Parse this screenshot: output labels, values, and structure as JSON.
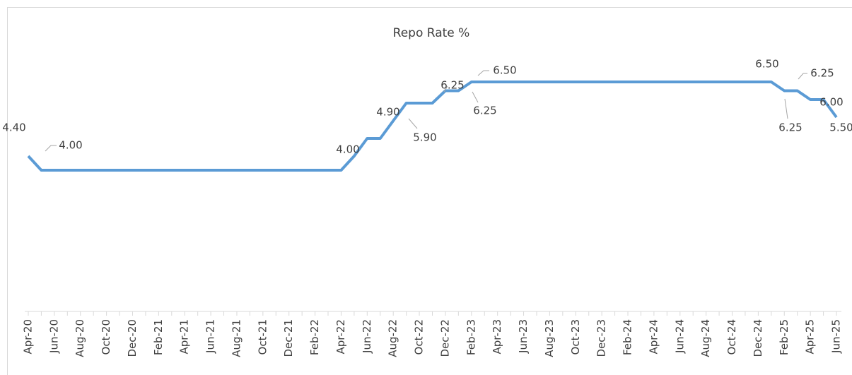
{
  "chart_data": {
    "type": "line",
    "title": "Repo Rate %",
    "categories": [
      "Apr-20",
      null,
      "Jun-20",
      null,
      "Aug-20",
      null,
      "Oct-20",
      null,
      "Dec-20",
      null,
      "Feb-21",
      null,
      "Apr-21",
      null,
      "Jun-21",
      null,
      "Aug-21",
      null,
      "Oct-21",
      null,
      "Dec-21",
      null,
      "Feb-22",
      null,
      "Apr-22",
      null,
      "Jun-22",
      null,
      "Aug-22",
      null,
      "Oct-22",
      null,
      "Dec-22",
      null,
      "Feb-23",
      null,
      "Apr-23",
      null,
      "Jun-23",
      null,
      "Aug-23",
      null,
      "Oct-23",
      null,
      "Dec-23",
      null,
      "Feb-24",
      null,
      "Apr-24",
      null,
      "Jun-24",
      null,
      "Aug-24",
      null,
      "Oct-24",
      null,
      "Dec-24",
      null,
      "Feb-25",
      null,
      "Apr-25",
      null,
      "Jun-25"
    ],
    "series": [
      {
        "name": "Repo Rate %",
        "color": "#5b9bd5",
        "values": [
          4.4,
          4.0,
          4.0,
          4.0,
          4.0,
          4.0,
          4.0,
          4.0,
          4.0,
          4.0,
          4.0,
          4.0,
          4.0,
          4.0,
          4.0,
          4.0,
          4.0,
          4.0,
          4.0,
          4.0,
          4.0,
          4.0,
          4.0,
          4.0,
          4.0,
          4.4,
          4.9,
          4.9,
          5.4,
          5.9,
          5.9,
          5.9,
          6.25,
          6.25,
          6.5,
          6.5,
          6.5,
          6.5,
          6.5,
          6.5,
          6.5,
          6.5,
          6.5,
          6.5,
          6.5,
          6.5,
          6.5,
          6.5,
          6.5,
          6.5,
          6.5,
          6.5,
          6.5,
          6.5,
          6.5,
          6.5,
          6.5,
          6.5,
          6.25,
          6.25,
          6.0,
          6.0,
          5.5
        ],
        "value_labels": [
          "4.40",
          "4.00",
          null,
          null,
          null,
          null,
          null,
          null,
          null,
          null,
          null,
          null,
          null,
          null,
          null,
          null,
          null,
          null,
          null,
          null,
          null,
          null,
          null,
          null,
          "4.00",
          null,
          "4.90",
          null,
          null,
          "5.90",
          null,
          null,
          "6.25",
          "6.25",
          "6.50",
          null,
          null,
          null,
          null,
          null,
          null,
          null,
          null,
          null,
          null,
          null,
          null,
          null,
          null,
          null,
          null,
          null,
          null,
          null,
          null,
          null,
          null,
          "6.50",
          "6.25",
          "6.25",
          null,
          "6.00",
          "5.50"
        ]
      }
    ],
    "ylim": [
      0,
      7
    ]
  }
}
